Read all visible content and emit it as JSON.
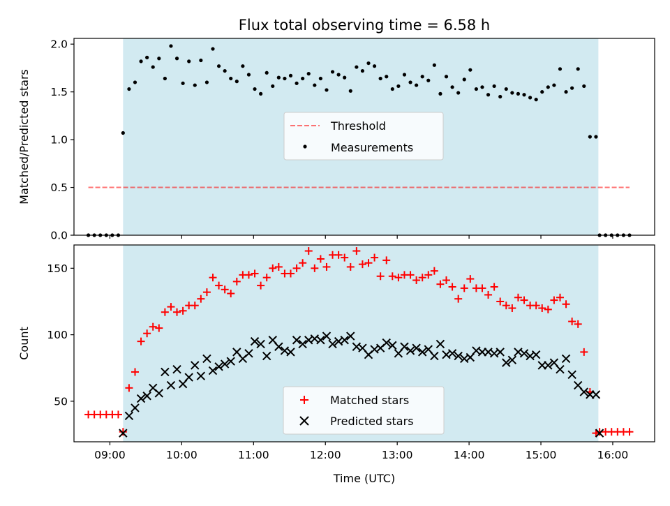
{
  "title": "Flux total observing time = 6.58 h",
  "colors": {
    "observing_span": "#add8e6",
    "threshold": "#ff0000",
    "measurements": "#000000",
    "matched": "#ff0000",
    "predicted": "#000000"
  },
  "chart_data": [
    {
      "type": "scatter",
      "ylabel": "Matched/Predicted stars",
      "ylim": [
        0.0,
        2.06
      ],
      "yticks": [
        0.0,
        0.5,
        1.0,
        1.5,
        2.0
      ],
      "ytick_labels": [
        "0.0",
        "0.5",
        "1.0",
        "1.5",
        "2.0"
      ],
      "xlim": [
        "08:30",
        "16:35"
      ],
      "shaded_span": [
        "09:11",
        "15:48"
      ],
      "legend_position": "center",
      "series": [
        {
          "name": "Threshold",
          "style": "dashed-line",
          "x": [
            "08:42",
            "16:14"
          ],
          "y": [
            0.5,
            0.5
          ]
        },
        {
          "name": "Measurements",
          "style": "dot",
          "x": [
            "08:42",
            "08:47",
            "08:52",
            "08:57",
            "09:02",
            "09:07",
            "09:11",
            "09:16",
            "09:21",
            "09:26",
            "09:31",
            "09:36",
            "09:41",
            "09:46",
            "09:51",
            "09:56",
            "10:01",
            "10:06",
            "10:11",
            "10:16",
            "10:21",
            "10:26",
            "10:31",
            "10:36",
            "10:41",
            "10:46",
            "10:51",
            "10:56",
            "11:01",
            "11:06",
            "11:11",
            "11:16",
            "11:21",
            "11:26",
            "11:31",
            "11:36",
            "11:41",
            "11:46",
            "11:51",
            "11:56",
            "12:01",
            "12:06",
            "12:11",
            "12:16",
            "12:21",
            "12:26",
            "12:31",
            "12:36",
            "12:41",
            "12:46",
            "12:51",
            "12:56",
            "13:01",
            "13:06",
            "13:11",
            "13:16",
            "13:21",
            "13:26",
            "13:31",
            "13:36",
            "13:41",
            "13:46",
            "13:51",
            "13:56",
            "14:01",
            "14:06",
            "14:11",
            "14:16",
            "14:21",
            "14:26",
            "14:31",
            "14:36",
            "14:41",
            "14:46",
            "14:51",
            "14:56",
            "15:01",
            "15:06",
            "15:11",
            "15:16",
            "15:21",
            "15:26",
            "15:31",
            "15:36",
            "15:41",
            "15:46",
            "15:49",
            "15:54",
            "15:59",
            "16:04",
            "16:09",
            "16:14"
          ],
          "y": [
            0,
            0,
            0,
            0,
            0,
            0,
            1.07,
            1.53,
            1.6,
            1.82,
            1.86,
            1.76,
            1.85,
            1.64,
            1.98,
            1.85,
            1.59,
            1.82,
            1.57,
            1.83,
            1.6,
            1.95,
            1.77,
            1.72,
            1.64,
            1.61,
            1.77,
            1.68,
            1.53,
            1.48,
            1.7,
            1.56,
            1.65,
            1.64,
            1.67,
            1.59,
            1.64,
            1.69,
            1.57,
            1.64,
            1.52,
            1.71,
            1.68,
            1.65,
            1.51,
            1.76,
            1.72,
            1.8,
            1.77,
            1.64,
            1.66,
            1.53,
            1.56,
            1.68,
            1.6,
            1.57,
            1.66,
            1.62,
            1.78,
            1.48,
            1.66,
            1.55,
            1.49,
            1.63,
            1.73,
            1.53,
            1.55,
            1.47,
            1.56,
            1.45,
            1.53,
            1.49,
            1.48,
            1.47,
            1.44,
            1.42,
            1.5,
            1.55,
            1.57,
            1.74,
            1.5,
            1.54,
            1.74,
            1.56,
            1.03,
            1.03,
            0,
            0,
            0,
            0,
            0,
            0
          ]
        }
      ]
    },
    {
      "type": "scatter",
      "xlabel": "Time (UTC)",
      "ylabel": "Count",
      "ylim": [
        19.5,
        167.5
      ],
      "yticks": [
        50,
        100,
        150
      ],
      "ytick_labels": [
        "50",
        "100",
        "150"
      ],
      "xlim": [
        "08:30",
        "16:35"
      ],
      "xtick_labels": [
        "09:00",
        "10:00",
        "11:00",
        "12:00",
        "13:00",
        "14:00",
        "15:00",
        "16:00"
      ],
      "shaded_span": [
        "09:11",
        "15:48"
      ],
      "legend_position": "lower center",
      "series": [
        {
          "name": "Matched stars",
          "marker": "+",
          "x": [
            "08:42",
            "08:47",
            "08:52",
            "08:57",
            "09:02",
            "09:07",
            "09:11",
            "09:16",
            "09:21",
            "09:26",
            "09:31",
            "09:36",
            "09:41",
            "09:46",
            "09:51",
            "09:56",
            "10:01",
            "10:06",
            "10:11",
            "10:16",
            "10:21",
            "10:26",
            "10:31",
            "10:36",
            "10:41",
            "10:46",
            "10:51",
            "10:56",
            "11:01",
            "11:06",
            "11:11",
            "11:16",
            "11:21",
            "11:26",
            "11:31",
            "11:36",
            "11:41",
            "11:46",
            "11:51",
            "11:56",
            "12:01",
            "12:06",
            "12:11",
            "12:16",
            "12:21",
            "12:26",
            "12:31",
            "12:36",
            "12:41",
            "12:46",
            "12:51",
            "12:56",
            "13:01",
            "13:06",
            "13:11",
            "13:16",
            "13:21",
            "13:26",
            "13:31",
            "13:36",
            "13:41",
            "13:46",
            "13:51",
            "13:56",
            "14:01",
            "14:06",
            "14:11",
            "14:16",
            "14:21",
            "14:26",
            "14:31",
            "14:36",
            "14:41",
            "14:46",
            "14:51",
            "14:56",
            "15:01",
            "15:06",
            "15:11",
            "15:16",
            "15:21",
            "15:26",
            "15:31",
            "15:36",
            "15:41",
            "15:46",
            "15:49",
            "15:54",
            "15:59",
            "16:04",
            "16:09",
            "16:14"
          ],
          "y": [
            40,
            40,
            40,
            40,
            40,
            40,
            27,
            60,
            72,
            95,
            101,
            106,
            105,
            117,
            121,
            117,
            118,
            122,
            122,
            127,
            132,
            143,
            137,
            134,
            131,
            140,
            145,
            145,
            146,
            137,
            143,
            150,
            151,
            146,
            146,
            150,
            154,
            163,
            150,
            157,
            151,
            160,
            160,
            158,
            151,
            163,
            153,
            154,
            158,
            144,
            156,
            144,
            143,
            145,
            145,
            141,
            143,
            145,
            148,
            138,
            141,
            136,
            127,
            135,
            142,
            135,
            135,
            130,
            136,
            125,
            122,
            120,
            128,
            126,
            122,
            122,
            120,
            119,
            126,
            128,
            123,
            110,
            108,
            87,
            57,
            26,
            27,
            27,
            27,
            27,
            27,
            27
          ]
        },
        {
          "name": "Predicted stars",
          "marker": "x",
          "x": [
            "09:11",
            "09:16",
            "09:21",
            "09:26",
            "09:31",
            "09:36",
            "09:41",
            "09:46",
            "09:51",
            "09:56",
            "10:01",
            "10:06",
            "10:11",
            "10:16",
            "10:21",
            "10:26",
            "10:31",
            "10:36",
            "10:41",
            "10:46",
            "10:51",
            "10:56",
            "11:01",
            "11:06",
            "11:11",
            "11:16",
            "11:21",
            "11:26",
            "11:31",
            "11:36",
            "11:41",
            "11:46",
            "11:51",
            "11:56",
            "12:01",
            "12:06",
            "12:11",
            "12:16",
            "12:21",
            "12:26",
            "12:31",
            "12:36",
            "12:41",
            "12:46",
            "12:51",
            "12:56",
            "13:01",
            "13:06",
            "13:11",
            "13:16",
            "13:21",
            "13:26",
            "13:31",
            "13:36",
            "13:41",
            "13:46",
            "13:51",
            "13:56",
            "14:01",
            "14:06",
            "14:11",
            "14:16",
            "14:21",
            "14:26",
            "14:31",
            "14:36",
            "14:41",
            "14:46",
            "14:51",
            "14:56",
            "15:01",
            "15:06",
            "15:11",
            "15:16",
            "15:21",
            "15:26",
            "15:31",
            "15:36",
            "15:41",
            "15:46",
            "15:49"
          ],
          "y": [
            26,
            39,
            45,
            52,
            54,
            60,
            56,
            72,
            62,
            74,
            63,
            68,
            77,
            69,
            82,
            73,
            76,
            78,
            80,
            87,
            82,
            86,
            95,
            93,
            84,
            96,
            91,
            88,
            87,
            96,
            93,
            96,
            97,
            96,
            99,
            93,
            95,
            96,
            99,
            91,
            90,
            85,
            89,
            90,
            94,
            92,
            86,
            91,
            88,
            90,
            87,
            89,
            84,
            93,
            85,
            86,
            84,
            82,
            83,
            88,
            87,
            87,
            86,
            87,
            79,
            81,
            87,
            86,
            84,
            85,
            77,
            77,
            79,
            74,
            82,
            70,
            62,
            57,
            55,
            55,
            26
          ]
        }
      ]
    }
  ]
}
